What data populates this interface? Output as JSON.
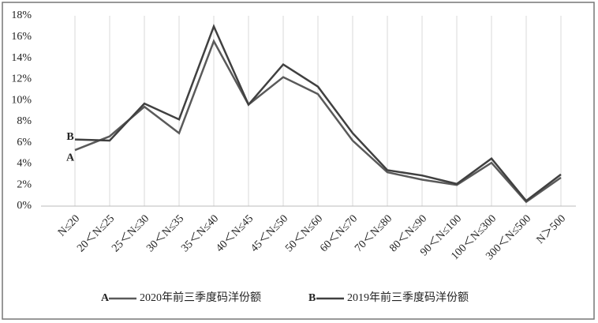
{
  "chart_data": {
    "type": "line",
    "categories": [
      "N≤20",
      "20＜N≤25",
      "25＜N≤30",
      "30＜N≤35",
      "35＜N≤40",
      "40＜N≤45",
      "45＜N≤50",
      "50＜N≤60",
      "60＜N≤70",
      "70＜N≤80",
      "80＜N≤90",
      "90＜N≤100",
      "100＜N≤300",
      "300＜N≤500",
      "N＞500"
    ],
    "series": [
      {
        "name": "2020年前三季度码洋份额",
        "label": "A",
        "color": "#5a5a5a",
        "values": [
          5.3,
          6.6,
          9.4,
          6.9,
          15.6,
          9.6,
          12.2,
          10.6,
          6.2,
          3.2,
          2.5,
          2.0,
          4.1,
          0.4,
          2.7
        ]
      },
      {
        "name": "2019年前三季度码洋份额",
        "label": "B",
        "color": "#404040",
        "values": [
          6.3,
          6.2,
          9.7,
          8.2,
          17.0,
          9.6,
          13.4,
          11.3,
          6.9,
          3.4,
          2.9,
          2.1,
          4.5,
          0.5,
          3.0
        ]
      }
    ],
    "ylim": [
      0,
      18
    ],
    "yticks": [
      {
        "value": 0,
        "label": "0%"
      },
      {
        "value": 2,
        "label": "2%"
      },
      {
        "value": 4,
        "label": "4%"
      },
      {
        "value": 6,
        "label": "6%"
      },
      {
        "value": 8,
        "label": "8%"
      },
      {
        "value": 10,
        "label": "10%"
      },
      {
        "value": 12,
        "label": "12%"
      },
      {
        "value": 14,
        "label": "14%"
      },
      {
        "value": 16,
        "label": "16%"
      },
      {
        "value": 18,
        "label": "18%"
      }
    ],
    "grid": true
  }
}
